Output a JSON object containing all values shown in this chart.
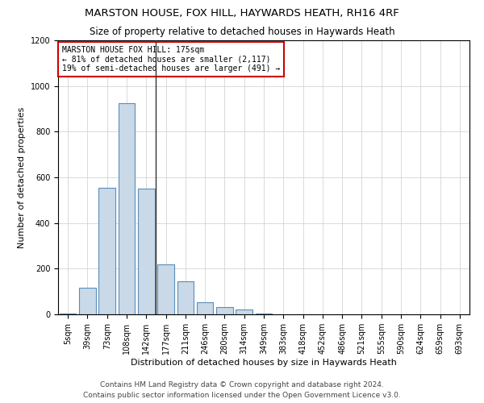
{
  "title1": "MARSTON HOUSE, FOX HILL, HAYWARDS HEATH, RH16 4RF",
  "title2": "Size of property relative to detached houses in Haywards Heath",
  "xlabel": "Distribution of detached houses by size in Haywards Heath",
  "ylabel": "Number of detached properties",
  "footer1": "Contains HM Land Registry data © Crown copyright and database right 2024.",
  "footer2": "Contains public sector information licensed under the Open Government Licence v3.0.",
  "annotation_line1": "MARSTON HOUSE FOX HILL: 175sqm",
  "annotation_line2": "← 81% of detached houses are smaller (2,117)",
  "annotation_line3": "19% of semi-detached houses are larger (491) →",
  "bar_labels": [
    "5sqm",
    "39sqm",
    "73sqm",
    "108sqm",
    "142sqm",
    "177sqm",
    "211sqm",
    "246sqm",
    "280sqm",
    "314sqm",
    "349sqm",
    "383sqm",
    "418sqm",
    "452sqm",
    "486sqm",
    "521sqm",
    "555sqm",
    "590sqm",
    "624sqm",
    "659sqm",
    "693sqm"
  ],
  "bar_values": [
    5,
    115,
    555,
    925,
    550,
    220,
    145,
    52,
    32,
    22,
    5,
    0,
    0,
    0,
    0,
    0,
    0,
    0,
    0,
    0,
    0
  ],
  "bar_color": "#c9d9e8",
  "bar_edge_color": "#5b8db8",
  "highlight_index": 4,
  "highlight_line_color": "#333333",
  "annotation_box_color": "#ffffff",
  "annotation_box_edge": "#cc0000",
  "ylim": [
    0,
    1200
  ],
  "yticks": [
    0,
    200,
    400,
    600,
    800,
    1000,
    1200
  ],
  "bg_color": "#ffffff",
  "grid_color": "#cccccc",
  "title1_fontsize": 9.5,
  "title2_fontsize": 8.5,
  "xlabel_fontsize": 8,
  "ylabel_fontsize": 8,
  "tick_fontsize": 7,
  "footer_fontsize": 6.5,
  "annotation_fontsize": 7
}
